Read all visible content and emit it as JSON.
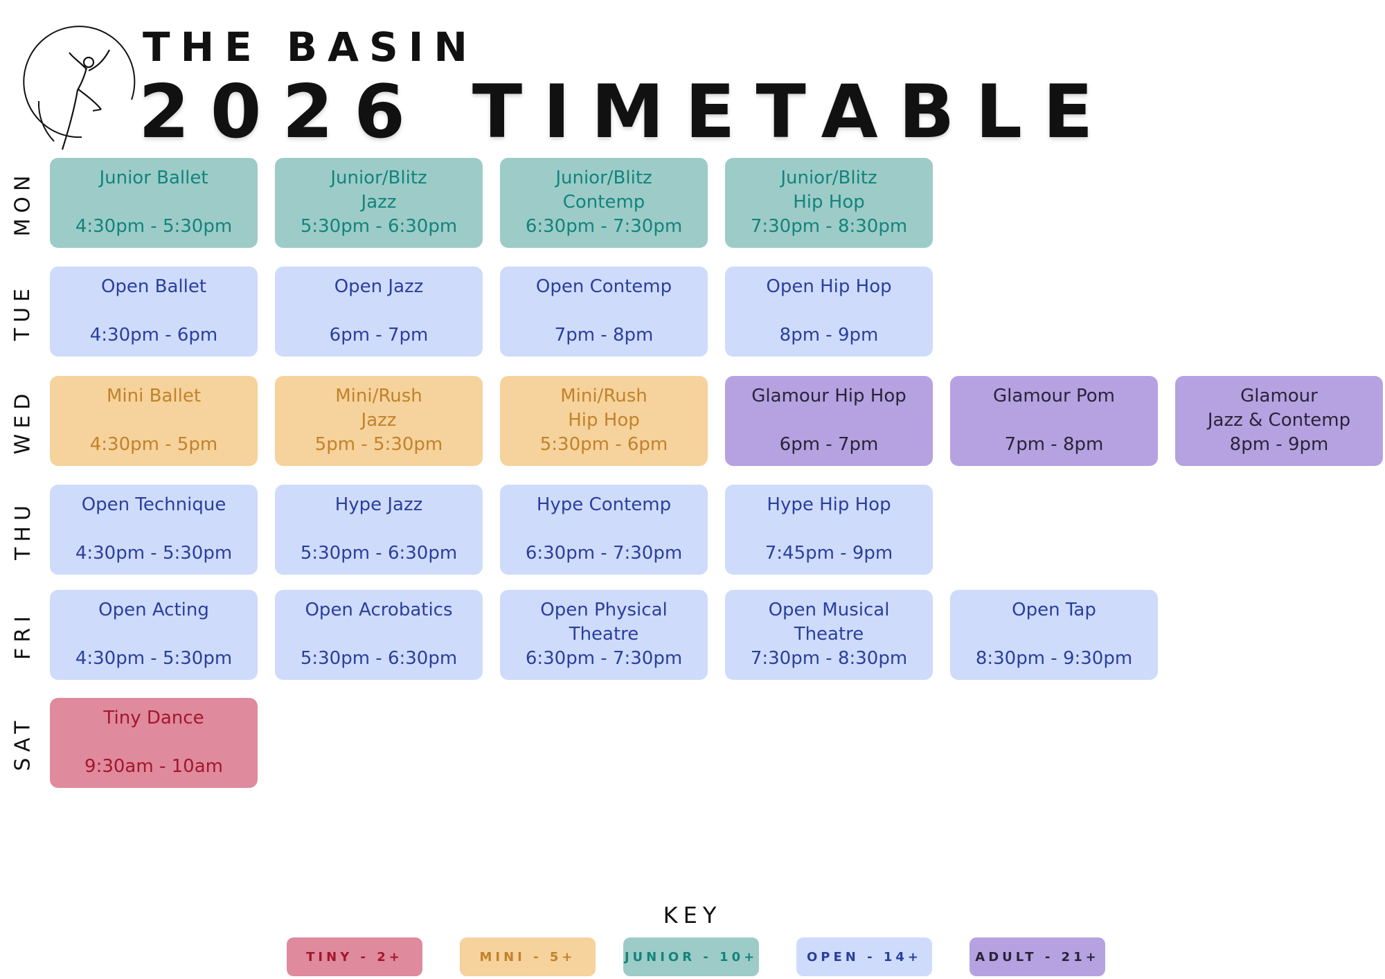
{
  "header": {
    "brand": "THE BASIN",
    "title": "2026 TIMETABLE",
    "logo_icon": "dancer-logo-icon"
  },
  "days": [
    {
      "label": "MON",
      "classes": [
        {
          "category": "junior",
          "lines": [
            "Junior Ballet",
            "",
            "4:30pm - 5:30pm"
          ]
        },
        {
          "category": "junior",
          "lines": [
            "Junior/Blitz",
            "Jazz",
            "5:30pm - 6:30pm"
          ]
        },
        {
          "category": "junior",
          "lines": [
            "Junior/Blitz",
            "Contemp",
            "6:30pm - 7:30pm"
          ]
        },
        {
          "category": "junior",
          "lines": [
            "Junior/Blitz",
            "Hip Hop",
            "7:30pm - 8:30pm"
          ]
        }
      ]
    },
    {
      "label": "TUE",
      "classes": [
        {
          "category": "open",
          "lines": [
            "Open Ballet",
            "",
            "4:30pm - 6pm"
          ]
        },
        {
          "category": "open",
          "lines": [
            "Open Jazz",
            "",
            "6pm - 7pm"
          ]
        },
        {
          "category": "open",
          "lines": [
            "Open Contemp",
            "",
            "7pm - 8pm"
          ]
        },
        {
          "category": "open",
          "lines": [
            "Open Hip Hop",
            "",
            "8pm - 9pm"
          ]
        }
      ]
    },
    {
      "label": "WED",
      "classes": [
        {
          "category": "mini",
          "lines": [
            "Mini Ballet",
            "",
            "4:30pm - 5pm"
          ]
        },
        {
          "category": "mini",
          "lines": [
            "Mini/Rush",
            "Jazz",
            "5pm - 5:30pm"
          ]
        },
        {
          "category": "mini",
          "lines": [
            "Mini/Rush",
            "Hip Hop",
            "5:30pm - 6pm"
          ]
        },
        {
          "category": "adult",
          "lines": [
            "Glamour Hip Hop",
            "",
            "6pm - 7pm"
          ]
        },
        {
          "category": "adult",
          "lines": [
            "Glamour Pom",
            "",
            "7pm - 8pm"
          ]
        },
        {
          "category": "adult",
          "lines": [
            "Glamour",
            "Jazz & Contemp",
            "8pm - 9pm"
          ]
        }
      ]
    },
    {
      "label": "THU",
      "classes": [
        {
          "category": "open",
          "lines": [
            "Open Technique",
            "",
            "4:30pm - 5:30pm"
          ]
        },
        {
          "category": "open",
          "lines": [
            "Hype Jazz",
            "",
            "5:30pm - 6:30pm"
          ]
        },
        {
          "category": "open",
          "lines": [
            "Hype Contemp",
            "",
            "6:30pm - 7:30pm"
          ]
        },
        {
          "category": "open",
          "lines": [
            "Hype Hip Hop",
            "",
            "7:45pm - 9pm"
          ]
        }
      ]
    },
    {
      "label": "FRI",
      "classes": [
        {
          "category": "open",
          "lines": [
            "Open Acting",
            "",
            "4:30pm - 5:30pm"
          ]
        },
        {
          "category": "open",
          "lines": [
            "Open Acrobatics",
            "",
            "5:30pm - 6:30pm"
          ]
        },
        {
          "category": "open",
          "lines": [
            "Open Physical",
            "Theatre",
            "6:30pm - 7:30pm"
          ]
        },
        {
          "category": "open",
          "lines": [
            "Open Musical",
            "Theatre",
            "7:30pm - 8:30pm"
          ]
        },
        {
          "category": "open",
          "lines": [
            "Open Tap",
            "",
            "8:30pm - 9:30pm"
          ]
        }
      ]
    },
    {
      "label": "SAT",
      "classes": [
        {
          "category": "tiny",
          "lines": [
            "Tiny Dance",
            "",
            "9:30am - 10am"
          ]
        }
      ]
    }
  ],
  "key": {
    "title": "KEY",
    "items": [
      {
        "category": "tiny",
        "label": "TINY - 2+"
      },
      {
        "category": "mini",
        "label": "MINI - 5+"
      },
      {
        "category": "junior",
        "label": "JUNIOR - 10+"
      },
      {
        "category": "open",
        "label": "OPEN - 14+"
      },
      {
        "category": "adult",
        "label": "ADULT - 21+"
      }
    ]
  },
  "colors": {
    "tiny": "#df8a9d",
    "mini": "#f6d29c",
    "junior": "#9dcbc8",
    "open": "#cedbfb",
    "adult": "#b6a2e1"
  }
}
